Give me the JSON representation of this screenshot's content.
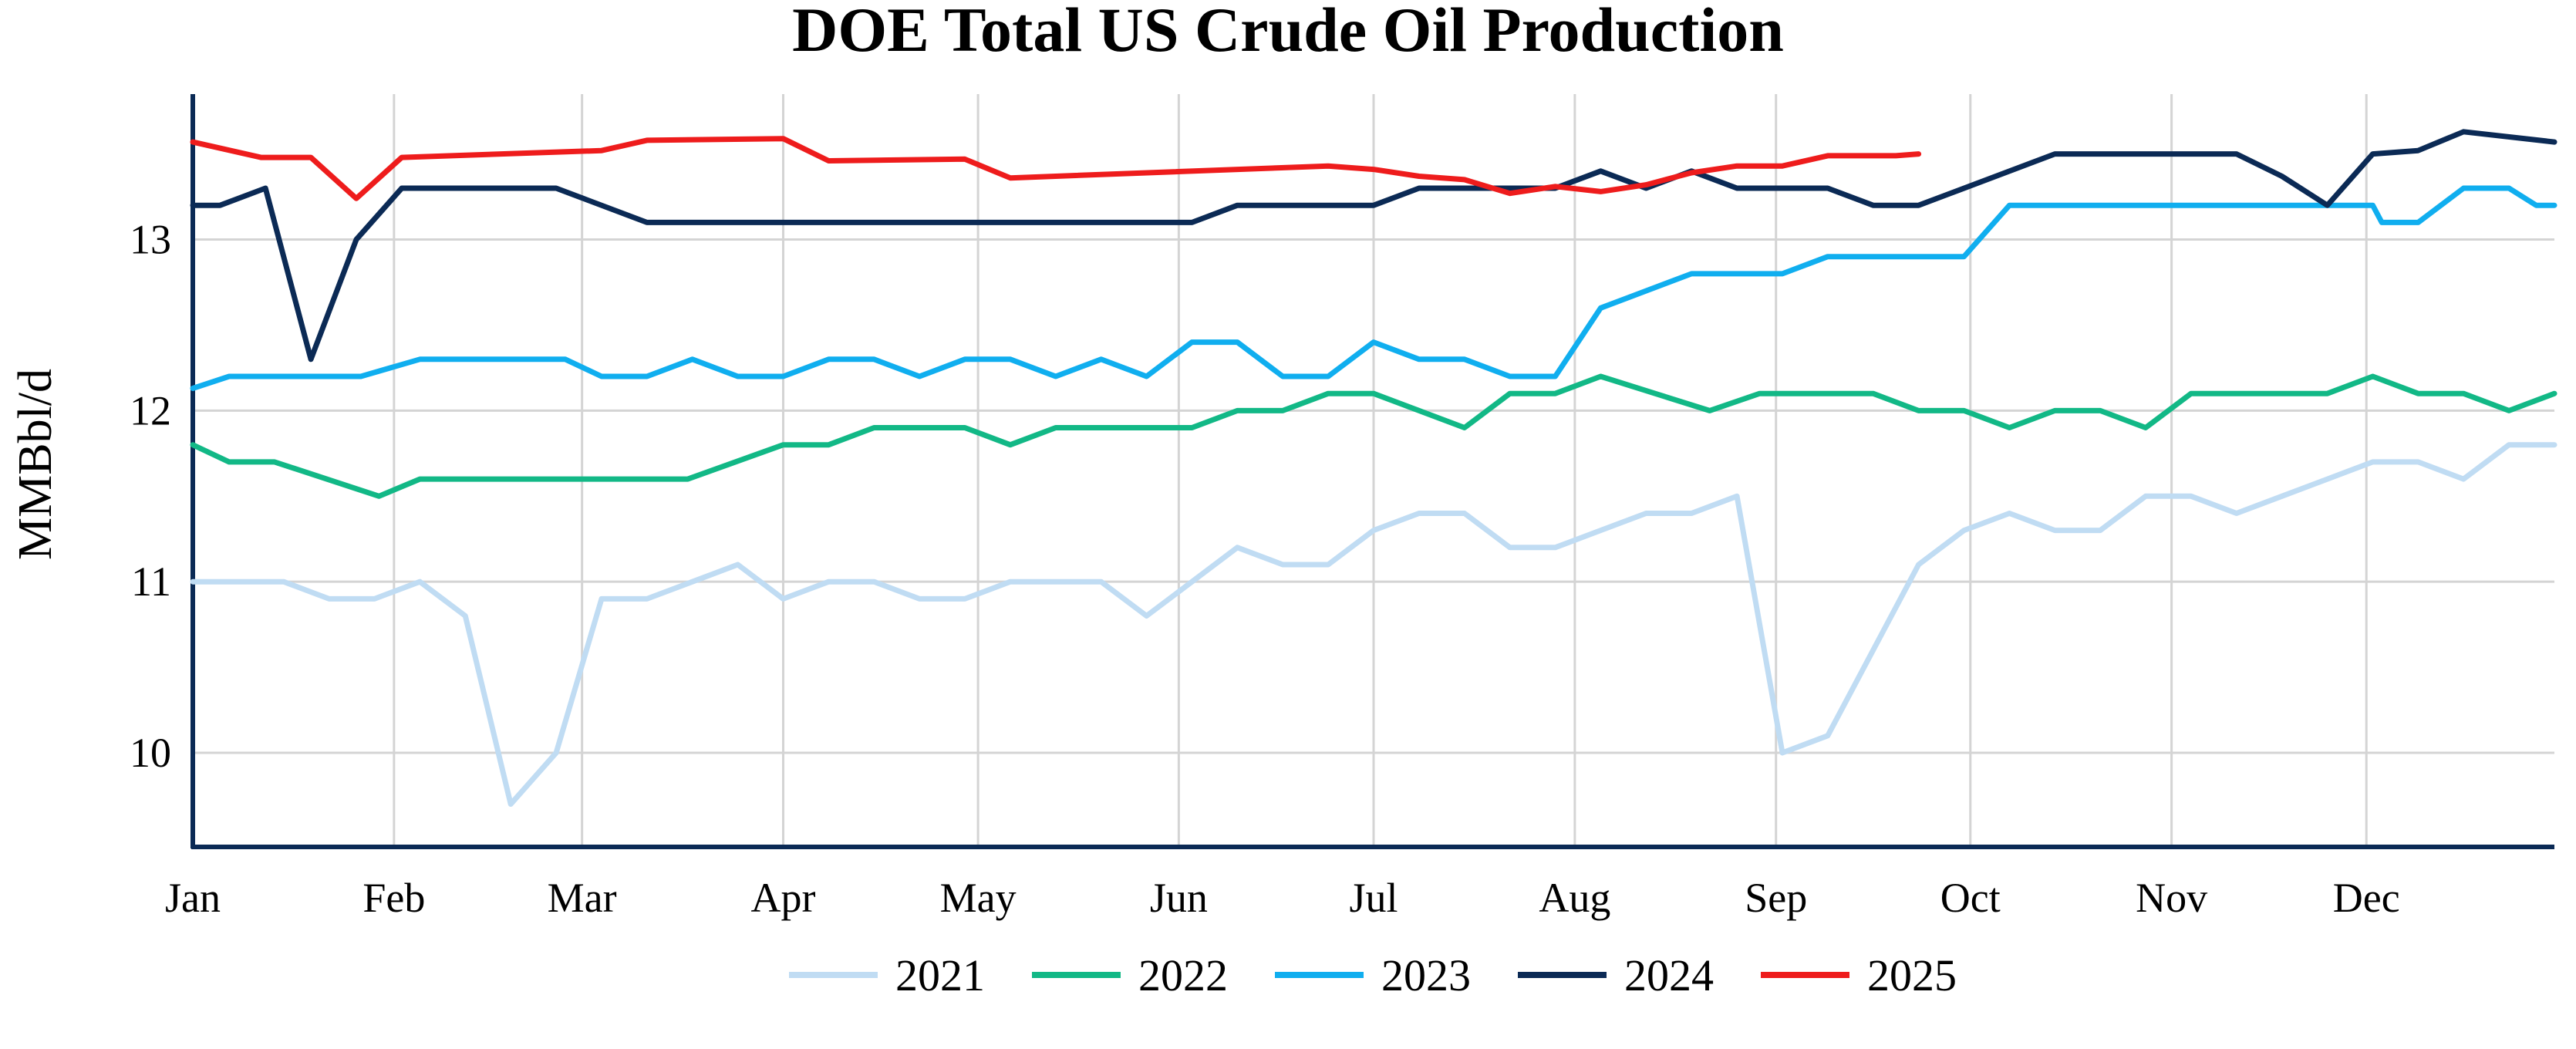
{
  "chart_data": {
    "type": "line",
    "title": "DOE Total US Crude Oil Production",
    "xlabel": "",
    "ylabel": "MMBbl/d",
    "ylim": [
      9.45,
      13.85
    ],
    "yticks": [
      10,
      11,
      12,
      13
    ],
    "x_unit": "week of year",
    "xlim": [
      1,
      53
    ],
    "month_ticks": [
      {
        "label": "Jan",
        "week": 1.0
      },
      {
        "label": "Feb",
        "week": 5.43
      },
      {
        "label": "Mar",
        "week": 9.57
      },
      {
        "label": "Apr",
        "week": 14.0
      },
      {
        "label": "May",
        "week": 18.29
      },
      {
        "label": "Jun",
        "week": 22.71
      },
      {
        "label": "Jul",
        "week": 27.0
      },
      {
        "label": "Aug",
        "week": 31.43
      },
      {
        "label": "Sep",
        "week": 35.86
      },
      {
        "label": "Oct",
        "week": 40.14
      },
      {
        "label": "Nov",
        "week": 44.57
      },
      {
        "label": "Dec",
        "week": 48.86
      }
    ],
    "grid": true,
    "legend_position": "bottom",
    "series": [
      {
        "name": "2021",
        "color": "#c0dcf3",
        "points": [
          [
            1,
            11.0
          ],
          [
            2,
            11.0
          ],
          [
            3,
            11.0
          ],
          [
            4,
            10.9
          ],
          [
            5,
            10.9
          ],
          [
            6,
            11.0
          ],
          [
            7,
            10.8
          ],
          [
            8,
            9.7
          ],
          [
            9,
            10.0
          ],
          [
            10,
            10.9
          ],
          [
            11,
            10.9
          ],
          [
            12,
            11.0
          ],
          [
            13,
            11.1
          ],
          [
            14,
            10.9
          ],
          [
            15,
            11.0
          ],
          [
            16,
            11.0
          ],
          [
            17,
            10.9
          ],
          [
            18,
            10.9
          ],
          [
            19,
            11.0
          ],
          [
            20,
            11.0
          ],
          [
            21,
            11.0
          ],
          [
            22,
            10.8
          ],
          [
            23,
            11.0
          ],
          [
            24,
            11.2
          ],
          [
            25,
            11.1
          ],
          [
            26,
            11.1
          ],
          [
            27,
            11.3
          ],
          [
            28,
            11.4
          ],
          [
            29,
            11.4
          ],
          [
            30,
            11.2
          ],
          [
            31,
            11.2
          ],
          [
            32,
            11.3
          ],
          [
            33,
            11.4
          ],
          [
            34,
            11.4
          ],
          [
            35,
            11.5
          ],
          [
            36,
            10.0
          ],
          [
            37,
            10.1
          ],
          [
            38,
            10.6
          ],
          [
            39,
            11.1
          ],
          [
            40,
            11.3
          ],
          [
            41,
            11.4
          ],
          [
            42,
            11.3
          ],
          [
            43,
            11.3
          ],
          [
            44,
            11.5
          ],
          [
            45,
            11.5
          ],
          [
            46,
            11.4
          ],
          [
            47,
            11.5
          ],
          [
            48,
            11.6
          ],
          [
            49,
            11.7
          ],
          [
            50,
            11.7
          ],
          [
            51,
            11.6
          ],
          [
            52,
            11.8
          ],
          [
            53,
            11.8
          ]
        ]
      },
      {
        "name": "2022",
        "color": "#12b886",
        "points": [
          [
            1,
            11.8
          ],
          [
            1.8,
            11.7
          ],
          [
            2.8,
            11.7
          ],
          [
            5.1,
            11.5
          ],
          [
            6,
            11.6
          ],
          [
            11.9,
            11.6
          ],
          [
            14,
            11.8
          ],
          [
            15,
            11.8
          ],
          [
            16,
            11.9
          ],
          [
            18,
            11.9
          ],
          [
            19,
            11.8
          ],
          [
            20,
            11.9
          ],
          [
            23,
            11.9
          ],
          [
            24,
            12.0
          ],
          [
            25,
            12.0
          ],
          [
            26,
            12.1
          ],
          [
            27,
            12.1
          ],
          [
            29,
            11.9
          ],
          [
            30,
            12.1
          ],
          [
            31,
            12.1
          ],
          [
            32,
            12.2
          ],
          [
            34.4,
            12.0
          ],
          [
            35.5,
            12.1
          ],
          [
            38,
            12.1
          ],
          [
            39,
            12.0
          ],
          [
            40,
            12.0
          ],
          [
            41,
            11.9
          ],
          [
            42,
            12.0
          ],
          [
            43,
            12.0
          ],
          [
            44,
            11.9
          ],
          [
            45,
            12.1
          ],
          [
            48,
            12.1
          ],
          [
            49,
            12.2
          ],
          [
            50,
            12.1
          ],
          [
            51,
            12.1
          ],
          [
            52,
            12.0
          ],
          [
            53,
            12.1
          ]
        ]
      },
      {
        "name": "2023",
        "color": "#10aeef",
        "points": [
          [
            1,
            12.13
          ],
          [
            1.8,
            12.2
          ],
          [
            4.7,
            12.2
          ],
          [
            6,
            12.3
          ],
          [
            9.2,
            12.3
          ],
          [
            10,
            12.2
          ],
          [
            11,
            12.2
          ],
          [
            12,
            12.3
          ],
          [
            13,
            12.2
          ],
          [
            14,
            12.2
          ],
          [
            15,
            12.3
          ],
          [
            16,
            12.3
          ],
          [
            17,
            12.2
          ],
          [
            18,
            12.3
          ],
          [
            19,
            12.3
          ],
          [
            20,
            12.2
          ],
          [
            21,
            12.3
          ],
          [
            22,
            12.2
          ],
          [
            23,
            12.4
          ],
          [
            24,
            12.4
          ],
          [
            25,
            12.2
          ],
          [
            26,
            12.2
          ],
          [
            27,
            12.4
          ],
          [
            28,
            12.3
          ],
          [
            29,
            12.3
          ],
          [
            30,
            12.2
          ],
          [
            31,
            12.2
          ],
          [
            32,
            12.6
          ],
          [
            34,
            12.8
          ],
          [
            36,
            12.8
          ],
          [
            37,
            12.9
          ],
          [
            40,
            12.9
          ],
          [
            41,
            13.2
          ],
          [
            49,
            13.2
          ],
          [
            49.2,
            13.1
          ],
          [
            50,
            13.1
          ],
          [
            51,
            13.3
          ],
          [
            52,
            13.3
          ],
          [
            52.6,
            13.2
          ],
          [
            53,
            13.2
          ]
        ]
      },
      {
        "name": "2024",
        "color": "#0b2a55",
        "points": [
          [
            1,
            13.2
          ],
          [
            1.6,
            13.2
          ],
          [
            2.6,
            13.3
          ],
          [
            3.6,
            12.3
          ],
          [
            4.6,
            13.0
          ],
          [
            5.6,
            13.3
          ],
          [
            9.0,
            13.3
          ],
          [
            11,
            13.1
          ],
          [
            23,
            13.1
          ],
          [
            24,
            13.2
          ],
          [
            27,
            13.2
          ],
          [
            28,
            13.3
          ],
          [
            31,
            13.3
          ],
          [
            32,
            13.4
          ],
          [
            33,
            13.3
          ],
          [
            34,
            13.4
          ],
          [
            35,
            13.3
          ],
          [
            37,
            13.3
          ],
          [
            38,
            13.2
          ],
          [
            39,
            13.2
          ],
          [
            42,
            13.5
          ],
          [
            46,
            13.5
          ],
          [
            47,
            13.37
          ],
          [
            48,
            13.2
          ],
          [
            49,
            13.5
          ],
          [
            50,
            13.52
          ],
          [
            51,
            13.63
          ],
          [
            53,
            13.57
          ]
        ]
      },
      {
        "name": "2025",
        "color": "#ee1c1c",
        "points": [
          [
            1,
            13.57
          ],
          [
            2.5,
            13.48
          ],
          [
            3.6,
            13.48
          ],
          [
            4.6,
            13.24
          ],
          [
            5.6,
            13.48
          ],
          [
            10,
            13.52
          ],
          [
            11,
            13.58
          ],
          [
            14,
            13.59
          ],
          [
            15,
            13.46
          ],
          [
            18,
            13.47
          ],
          [
            19,
            13.36
          ],
          [
            26,
            13.43
          ],
          [
            27,
            13.41
          ],
          [
            28,
            13.37
          ],
          [
            29,
            13.35
          ],
          [
            30,
            13.27
          ],
          [
            31,
            13.31
          ],
          [
            32,
            13.28
          ],
          [
            33,
            13.32
          ],
          [
            34,
            13.39
          ],
          [
            35,
            13.43
          ],
          [
            36,
            13.43
          ],
          [
            37,
            13.49
          ],
          [
            38.5,
            13.49
          ],
          [
            39,
            13.5
          ]
        ]
      }
    ]
  }
}
